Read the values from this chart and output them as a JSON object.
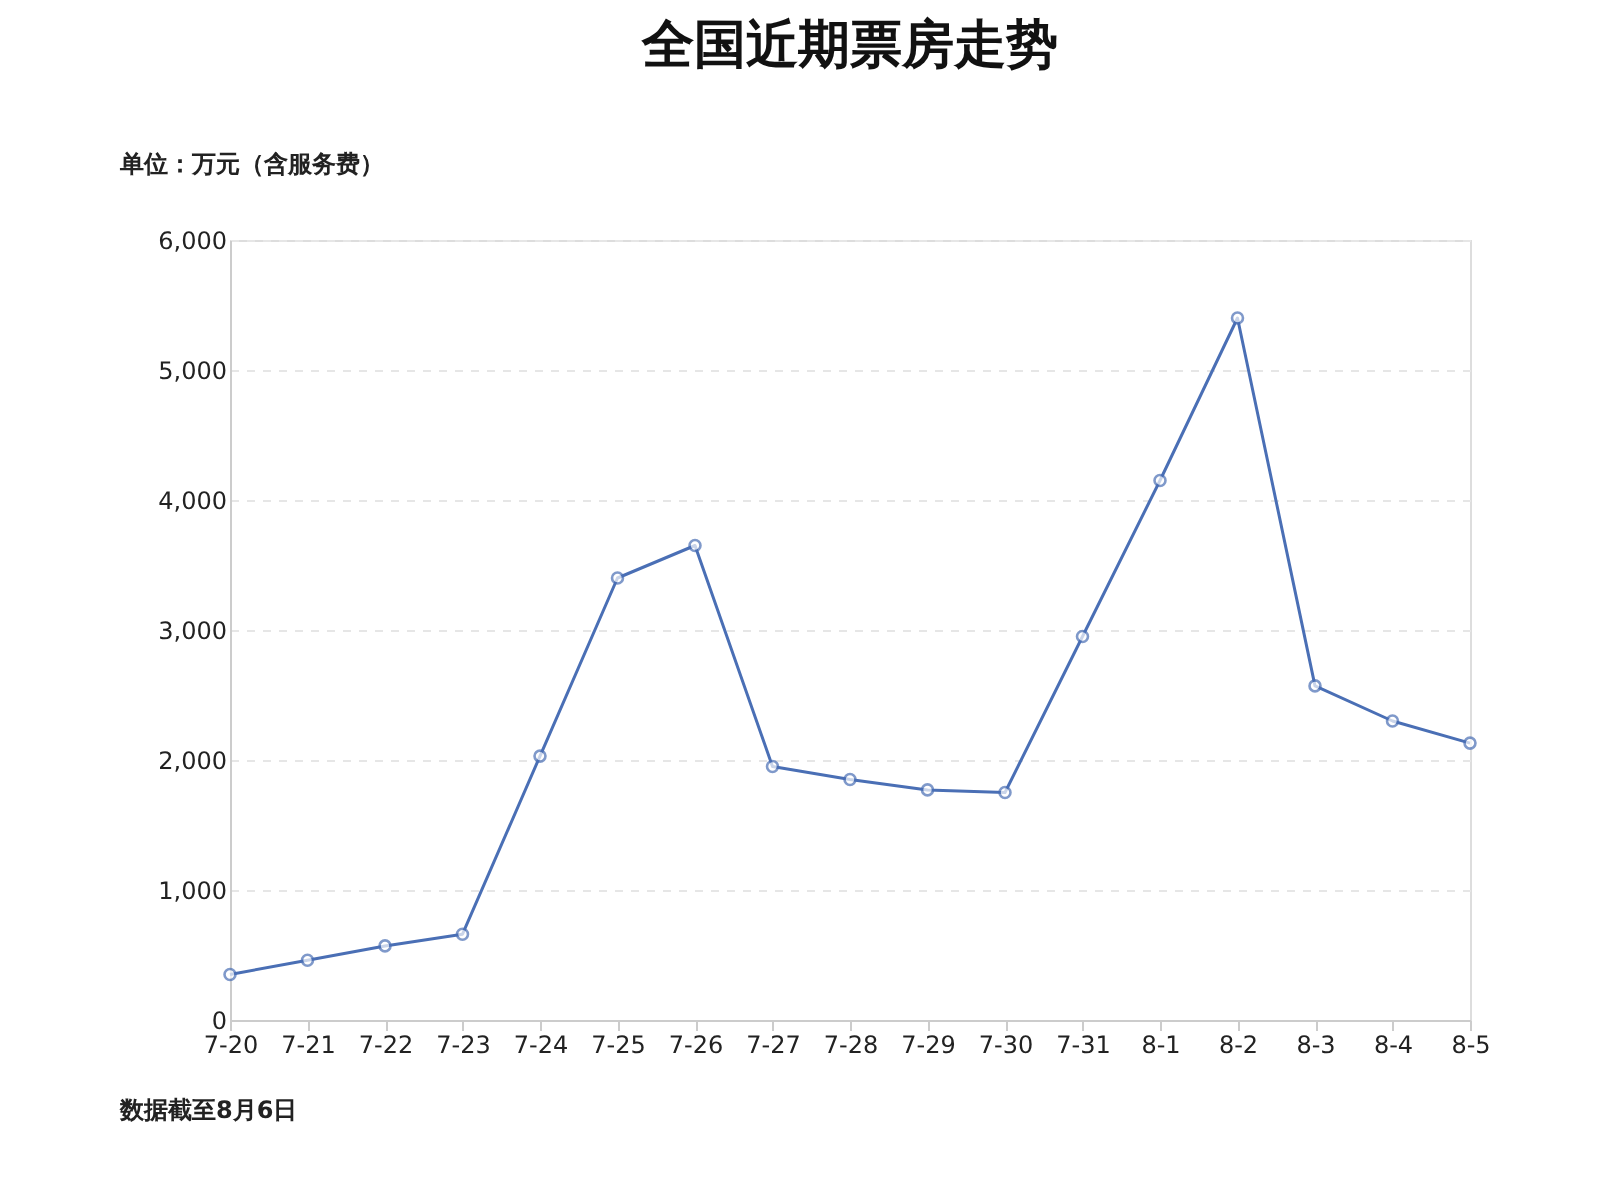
{
  "chart_data": {
    "type": "line",
    "title": "全国近期票房走势",
    "ylabel": "单位：万元（含服务费）",
    "categories": [
      "7-20",
      "7-21",
      "7-22",
      "7-23",
      "7-24",
      "7-25",
      "7-26",
      "7-27",
      "7-28",
      "7-29",
      "7-30",
      "7-31",
      "8-1",
      "8-2",
      "8-3",
      "8-4",
      "8-5"
    ],
    "series": [
      {
        "color": "#4a6fb5",
        "values": [
          350,
          460,
          570,
          660,
          2030,
          3400,
          3650,
          1950,
          1850,
          1770,
          1750,
          2950,
          4150,
          5400,
          2570,
          2300,
          2130
        ]
      }
    ],
    "ylim": [
      0,
      6000
    ],
    "yticks": [
      0,
      {
        "value": 1000,
        "label": "1,000"
      },
      {
        "value": 2000,
        "label": "2,000"
      },
      {
        "value": 3000,
        "label": "3,000"
      },
      {
        "value": 4000,
        "label": "4,000"
      },
      {
        "value": 5000,
        "label": "5,000"
      },
      {
        "value": 6000,
        "label": "6,000"
      }
    ],
    "grid": "y",
    "marker": "circle",
    "line_style": "solid",
    "legend": false,
    "annotations": [
      "数据截至8月6日"
    ]
  }
}
